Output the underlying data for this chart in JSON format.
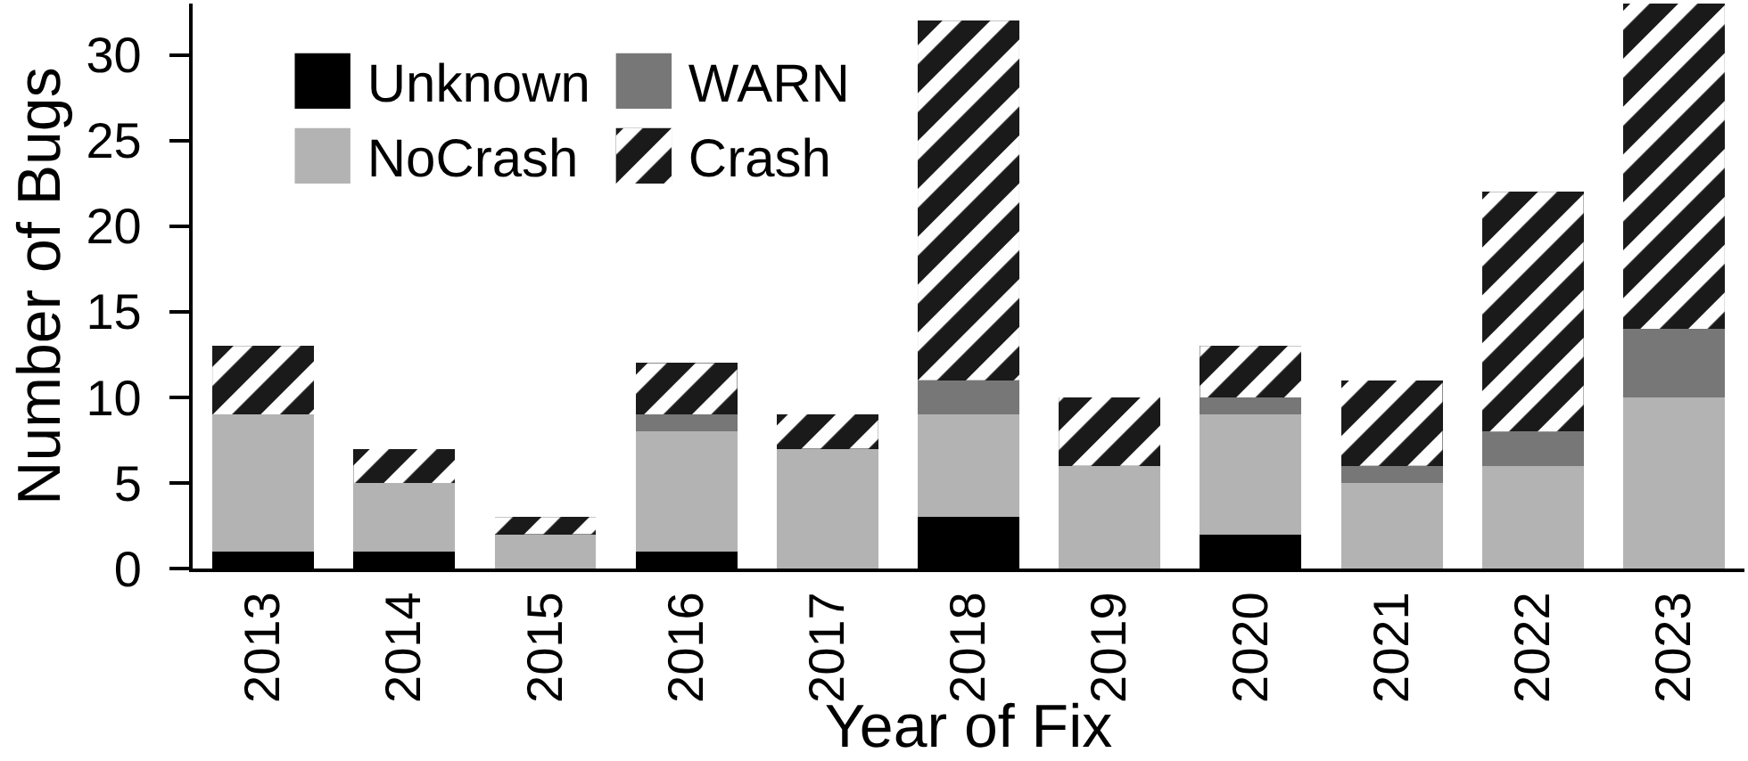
{
  "chart_data": {
    "type": "bar",
    "stacked": true,
    "xlabel": "Year of Fix",
    "ylabel": "Number of Bugs",
    "categories": [
      "2013",
      "2014",
      "2015",
      "2016",
      "2017",
      "2018",
      "2019",
      "2020",
      "2021",
      "2022",
      "2023"
    ],
    "series": [
      {
        "name": "Unknown",
        "color": "#000000",
        "values": [
          1,
          1,
          0,
          1,
          0,
          3,
          0,
          2,
          0,
          0,
          0
        ]
      },
      {
        "name": "NoCrash",
        "color": "#b3b3b3",
        "values": [
          8,
          4,
          2,
          7,
          7,
          6,
          6,
          7,
          5,
          6,
          10
        ]
      },
      {
        "name": "WARN",
        "color": "#777777",
        "values": [
          0,
          0,
          0,
          1,
          0,
          2,
          0,
          1,
          1,
          2,
          4
        ]
      },
      {
        "name": "Crash",
        "color": "#1a1a1a",
        "values": [
          4,
          2,
          1,
          3,
          2,
          21,
          4,
          3,
          5,
          14,
          19
        ]
      }
    ],
    "ylim": [
      0,
      33
    ],
    "yticks": [
      0,
      5,
      10,
      15,
      20,
      25,
      30
    ],
    "legend": "top left"
  }
}
